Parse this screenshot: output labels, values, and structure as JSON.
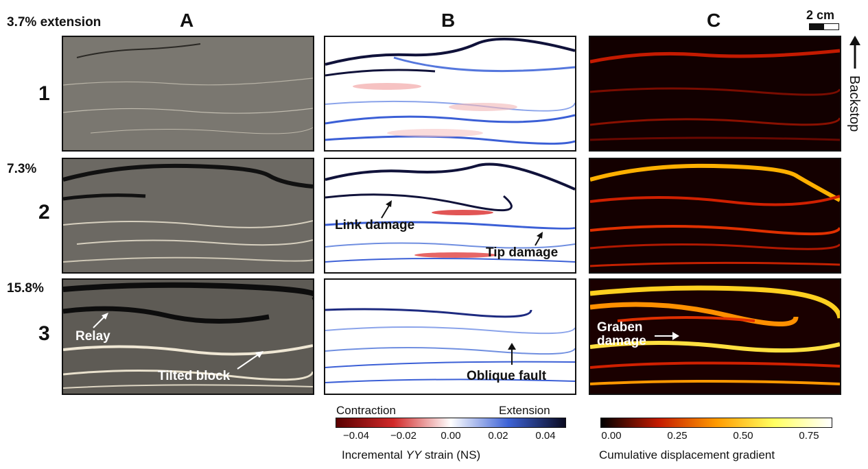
{
  "header": {
    "extension_label": "3.7% extension",
    "col_a": "A",
    "col_b": "B",
    "col_c": "C",
    "scale_label": "2 cm",
    "backstop_label": "Backstop"
  },
  "rows": [
    {
      "num": "1",
      "pct": ""
    },
    {
      "num": "2",
      "pct": "7.3%"
    },
    {
      "num": "3",
      "pct": "15.8%"
    }
  ],
  "annotations": {
    "relay": "Relay",
    "tilted_block": "Tilted block",
    "link_damage": "Link damage",
    "tip_damage": "Tip damage",
    "oblique_fault": "Oblique fault",
    "graben_damage": "Graben damage"
  },
  "colorbar_b": {
    "left_label": "Contraction",
    "right_label": "Extension",
    "ticks": [
      "−0.04",
      "−0.02",
      "0.00",
      "0.02",
      "0.04"
    ],
    "title_prefix": "Incremental ",
    "title_italic": "YY",
    "title_suffix": " strain (NS)",
    "colors": [
      "#5a0000",
      "#d12828",
      "#ffffff",
      "#3d62d6",
      "#0a0a20"
    ]
  },
  "colorbar_c": {
    "ticks": [
      "0.00",
      "0.25",
      "0.50",
      "0.75"
    ],
    "title": "Cumulative displacement gradient",
    "colors": [
      "#000000",
      "#c41a00",
      "#ff9a00",
      "#ffff60",
      "#ffffff"
    ]
  }
}
